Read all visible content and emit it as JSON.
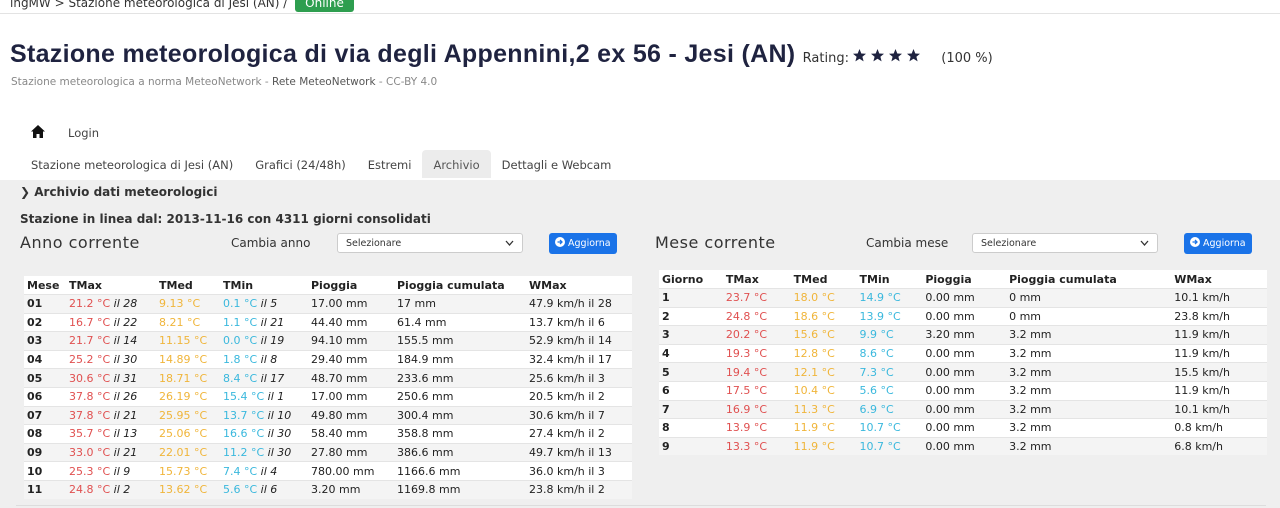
{
  "breadcrumb": {
    "path": "ingMW > Stazione meteorologica di Jesi (AN) /",
    "badge": "Online"
  },
  "header": {
    "title": "Stazione meteorologica di via degli Appennini,2 ex 56 - Jesi (AN)",
    "rating_label": "Rating:",
    "rating_percent": "(100 %)",
    "subtitle": {
      "standard": "Stazione meteorologica a norma MeteoNetwork",
      "sep1": " - ",
      "network": "Rete MeteoNetwork",
      "license": " - CC-BY 4.0"
    }
  },
  "nav": {
    "login": "Login",
    "tabs": [
      "Stazione meteorologica di Jesi (AN)",
      "Grafici (24/48h)",
      "Estremi",
      "Archivio",
      "Dettagli e Webcam"
    ]
  },
  "section": {
    "title": "Archivio dati meteorologici",
    "online_since": "Stazione in linea dal: 2013-11-16 con 4311 giorni consolidati"
  },
  "year": {
    "title": "Anno corrente",
    "select_label": "Cambia anno",
    "select": "Selezionare",
    "button": "Aggiorna",
    "headers": [
      "Mese",
      "TMax",
      "TMed",
      "TMin",
      "Pioggia",
      "Pioggia cumulata",
      "WMax"
    ],
    "rows": [
      [
        "01",
        {
          "value": "21.2 °C",
          "day": "il 28"
        },
        "9.13 °C",
        {
          "value": "0.1 °C",
          "day": "il 5"
        },
        "17.00 mm",
        "17 mm",
        "47.9 km/h il 28"
      ],
      [
        "02",
        {
          "value": "16.7 °C",
          "day": "il 22"
        },
        "8.21 °C",
        {
          "value": "1.1 °C",
          "day": "il 21"
        },
        "44.40 mm",
        "61.4 mm",
        "13.7 km/h il 6"
      ],
      [
        "03",
        {
          "value": "21.7 °C",
          "day": "il 14"
        },
        "11.15 °C",
        {
          "value": "0.0 °C",
          "day": "il 19"
        },
        "94.10 mm",
        "155.5 mm",
        "52.9 km/h il 14"
      ],
      [
        "04",
        {
          "value": "25.2 °C",
          "day": "il 30"
        },
        "14.89 °C",
        {
          "value": "1.8 °C",
          "day": "il 8"
        },
        "29.40 mm",
        "184.9 mm",
        "32.4 km/h il 17"
      ],
      [
        "05",
        {
          "value": "30.6 °C",
          "day": "il 31"
        },
        "18.71 °C",
        {
          "value": "8.4 °C",
          "day": "il 17"
        },
        "48.70 mm",
        "233.6 mm",
        "25.6 km/h il 3"
      ],
      [
        "06",
        {
          "value": "37.8 °C",
          "day": "il 26"
        },
        "26.19 °C",
        {
          "value": "15.4 °C",
          "day": "il 1"
        },
        "17.00 mm",
        "250.6 mm",
        "20.5 km/h il 2"
      ],
      [
        "07",
        {
          "value": "37.8 °C",
          "day": "il 21"
        },
        "25.95 °C",
        {
          "value": "13.7 °C",
          "day": "il 10"
        },
        "49.80 mm",
        "300.4 mm",
        "30.6 km/h il 7"
      ],
      [
        "08",
        {
          "value": "35.7 °C",
          "day": "il 13"
        },
        "25.06 °C",
        {
          "value": "16.6 °C",
          "day": "il 30"
        },
        "58.40 mm",
        "358.8 mm",
        "27.4 km/h il 2"
      ],
      [
        "09",
        {
          "value": "33.0 °C",
          "day": "il 21"
        },
        "22.01 °C",
        {
          "value": "11.2 °C",
          "day": "il 30"
        },
        "27.80 mm",
        "386.6 mm",
        "49.7 km/h il 13"
      ],
      [
        "10",
        {
          "value": "25.3 °C",
          "day": "il 9"
        },
        "15.73 °C",
        {
          "value": "7.4 °C",
          "day": "il 4"
        },
        "780.00 mm",
        "1166.6 mm",
        "36.0 km/h il 3"
      ],
      [
        "11",
        {
          "value": "24.8 °C",
          "day": "il 2"
        },
        "13.62 °C",
        {
          "value": "5.6 °C",
          "day": "il 6"
        },
        "3.20 mm",
        "1169.8 mm",
        "23.8 km/h il 2"
      ]
    ]
  },
  "month": {
    "title": "Mese corrente",
    "select_label": "Cambia mese",
    "select": "Selezionare",
    "button": "Aggiorna",
    "headers": [
      "Giorno",
      "TMax",
      "TMed",
      "TMin",
      "Pioggia",
      "Pioggia cumulata",
      "WMax"
    ],
    "rows": [
      [
        "1",
        "23.7 °C",
        "18.0 °C",
        "14.9 °C",
        "0.00 mm",
        "0 mm",
        "10.1 km/h"
      ],
      [
        "2",
        "24.8 °C",
        "18.6 °C",
        "13.9 °C",
        "0.00 mm",
        "0 mm",
        "23.8 km/h"
      ],
      [
        "3",
        "20.2 °C",
        "15.6 °C",
        "9.9 °C",
        "3.20 mm",
        "3.2 mm",
        "11.9 km/h"
      ],
      [
        "4",
        "19.3 °C",
        "12.8 °C",
        "8.6 °C",
        "0.00 mm",
        "3.2 mm",
        "11.9 km/h"
      ],
      [
        "5",
        "19.4 °C",
        "12.1 °C",
        "7.3 °C",
        "0.00 mm",
        "3.2 mm",
        "15.5 km/h"
      ],
      [
        "6",
        "17.5 °C",
        "10.4 °C",
        "5.6 °C",
        "0.00 mm",
        "3.2 mm",
        "11.9 km/h"
      ],
      [
        "7",
        "16.9 °C",
        "11.3 °C",
        "6.9 °C",
        "0.00 mm",
        "3.2 mm",
        "10.1 km/h"
      ],
      [
        "8",
        "13.9 °C",
        "11.9 °C",
        "10.7 °C",
        "0.00 mm",
        "3.2 mm",
        "0.8 km/h"
      ],
      [
        "9",
        "13.3 °C",
        "11.9 °C",
        "10.7 °C",
        "0.00 mm",
        "3.2 mm",
        "6.8 km/h"
      ]
    ]
  }
}
